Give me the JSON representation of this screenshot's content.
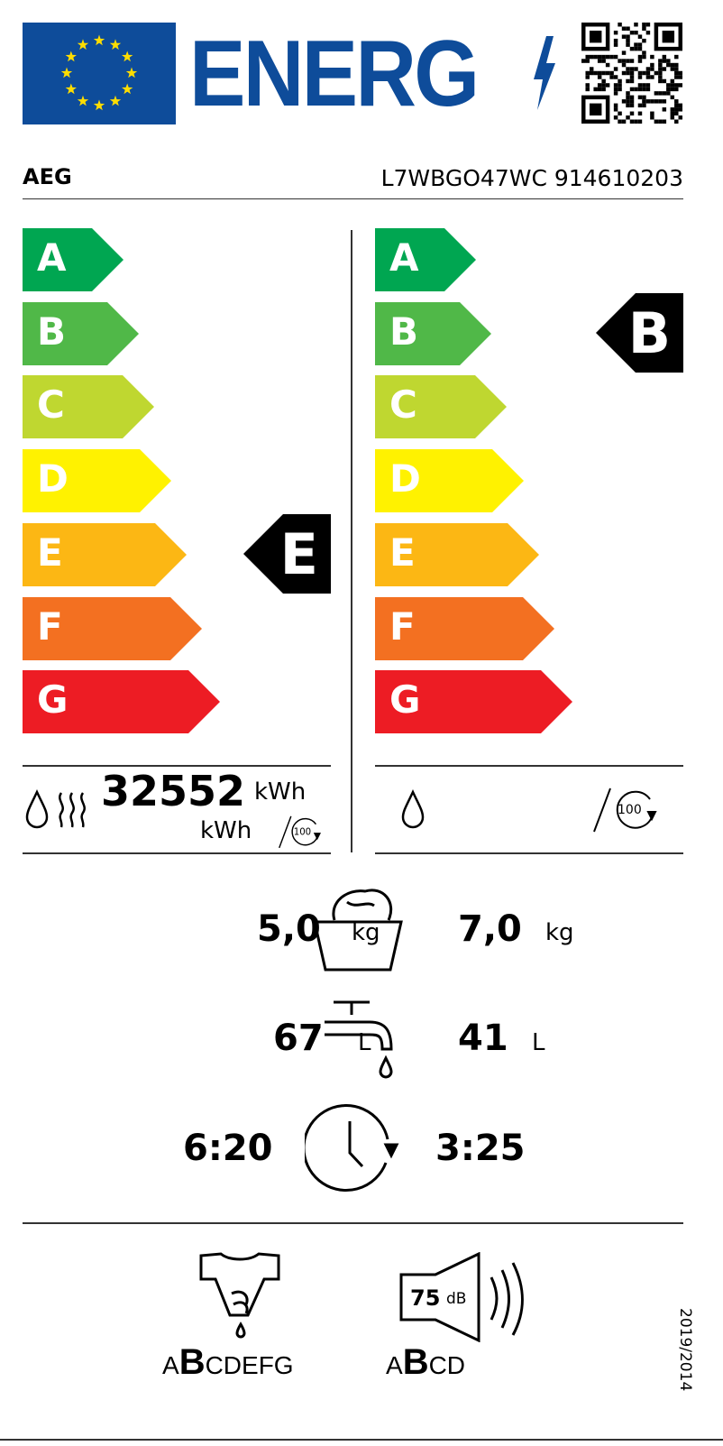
{
  "header": {
    "logo_text": "ENERG",
    "brand": "AEG",
    "model": "L7WBGO47WC 914610203"
  },
  "colors": {
    "eu_blue": "#0e4c9a",
    "star": "#ffdd00",
    "A": "#00a651",
    "B": "#50b848",
    "C": "#bfd730",
    "D": "#fff200",
    "E": "#fcb714",
    "F": "#f37021",
    "G": "#ed1c24"
  },
  "scale": [
    "A",
    "B",
    "C",
    "D",
    "E",
    "F",
    "G"
  ],
  "left": {
    "class": "E",
    "energy_value": "32552",
    "unit1": "kWh",
    "unit2": "kWh",
    "cycles": "100"
  },
  "right": {
    "class": "B",
    "cycles": "100"
  },
  "capacity": {
    "left": "5,0",
    "left_unit": "kg",
    "right": "7,0",
    "right_unit": "kg"
  },
  "water": {
    "left": "67",
    "left_unit": "L",
    "right": "41",
    "right_unit": "L"
  },
  "duration": {
    "left": "6:20",
    "right": "3:25"
  },
  "spin": {
    "pre": "A",
    "class": "B",
    "post": "CDEFG"
  },
  "noise": {
    "value": "75",
    "unit": "dB",
    "pre": "A",
    "class": "B",
    "post": "CD"
  },
  "regulation": "2019/2014"
}
